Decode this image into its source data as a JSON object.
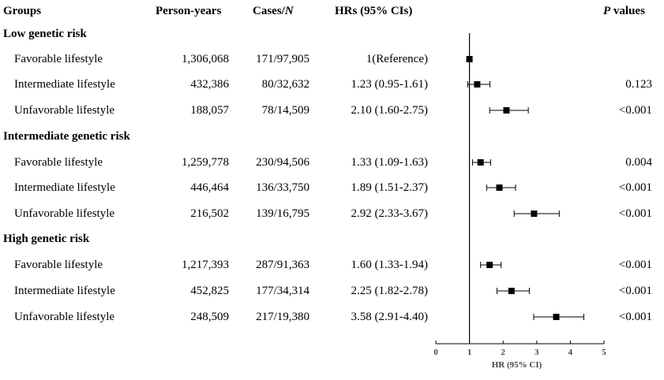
{
  "headers": {
    "groups": "Groups",
    "person_years": "Person-years",
    "cases_prefix": "Cases/",
    "cases_n": "N",
    "hrs": "HRs (95% CIs)",
    "p_italic": "P",
    "p_rest": " values"
  },
  "table": {
    "groups": [
      {
        "name": "Low genetic risk",
        "rows": [
          {
            "label": "Favorable lifestyle",
            "person_years": "1,306,068",
            "cases": "171/97,905",
            "hr_text": "1(Reference)",
            "p": ""
          },
          {
            "label": "Intermediate lifestyle",
            "person_years": "432,386",
            "cases": "80/32,632",
            "hr_text": "1.23 (0.95-1.61)",
            "p": "0.123"
          },
          {
            "label": "Unfavorable lifestyle",
            "person_years": "188,057",
            "cases": "78/14,509",
            "hr_text": "2.10 (1.60-2.75)",
            "p": "<0.001"
          }
        ]
      },
      {
        "name": "Intermediate genetic risk",
        "rows": [
          {
            "label": "Favorable lifestyle",
            "person_years": "1,259,778",
            "cases": "230/94,506",
            "hr_text": "1.33 (1.09-1.63)",
            "p": "0.004"
          },
          {
            "label": "Intermediate lifestyle",
            "person_years": "446,464",
            "cases": "136/33,750",
            "hr_text": "1.89 (1.51-2.37)",
            "p": "<0.001"
          },
          {
            "label": "Unfavorable lifestyle",
            "person_years": "216,502",
            "cases": "139/16,795",
            "hr_text": "2.92 (2.33-3.67)",
            "p": "<0.001"
          }
        ]
      },
      {
        "name": "High genetic risk",
        "rows": [
          {
            "label": "Favorable lifestyle",
            "person_years": "1,217,393",
            "cases": "287/91,363",
            "hr_text": "1.60 (1.33-1.94)",
            "p": "<0.001"
          },
          {
            "label": "Intermediate lifestyle",
            "person_years": "452,825",
            "cases": "177/34,314",
            "hr_text": "2.25 (1.82-2.78)",
            "p": "<0.001"
          },
          {
            "label": "Unfavorable lifestyle",
            "person_years": "248,509",
            "cases": "217/19,380",
            "hr_text": "3.58 (2.91-4.40)",
            "p": "<0.001"
          }
        ]
      }
    ]
  },
  "chart_data": {
    "type": "scatter",
    "subtype": "forest-plot",
    "xlabel": "HR (95% CI)",
    "xlim": [
      0,
      5
    ],
    "xticks": [
      "0",
      "1",
      "2",
      "3",
      "4",
      "5"
    ],
    "reference_line": 1,
    "points": [
      {
        "hr": 1.0,
        "low": 1.0,
        "high": 1.0
      },
      {
        "hr": 1.23,
        "low": 0.95,
        "high": 1.61
      },
      {
        "hr": 2.1,
        "low": 1.6,
        "high": 2.75
      },
      {
        "hr": 1.33,
        "low": 1.09,
        "high": 1.63
      },
      {
        "hr": 1.89,
        "low": 1.51,
        "high": 2.37
      },
      {
        "hr": 2.92,
        "low": 2.33,
        "high": 3.67
      },
      {
        "hr": 1.6,
        "low": 1.33,
        "high": 1.94
      },
      {
        "hr": 2.25,
        "low": 1.82,
        "high": 2.78
      },
      {
        "hr": 3.58,
        "low": 2.91,
        "high": 4.4
      }
    ],
    "marker_color": "#000000"
  }
}
